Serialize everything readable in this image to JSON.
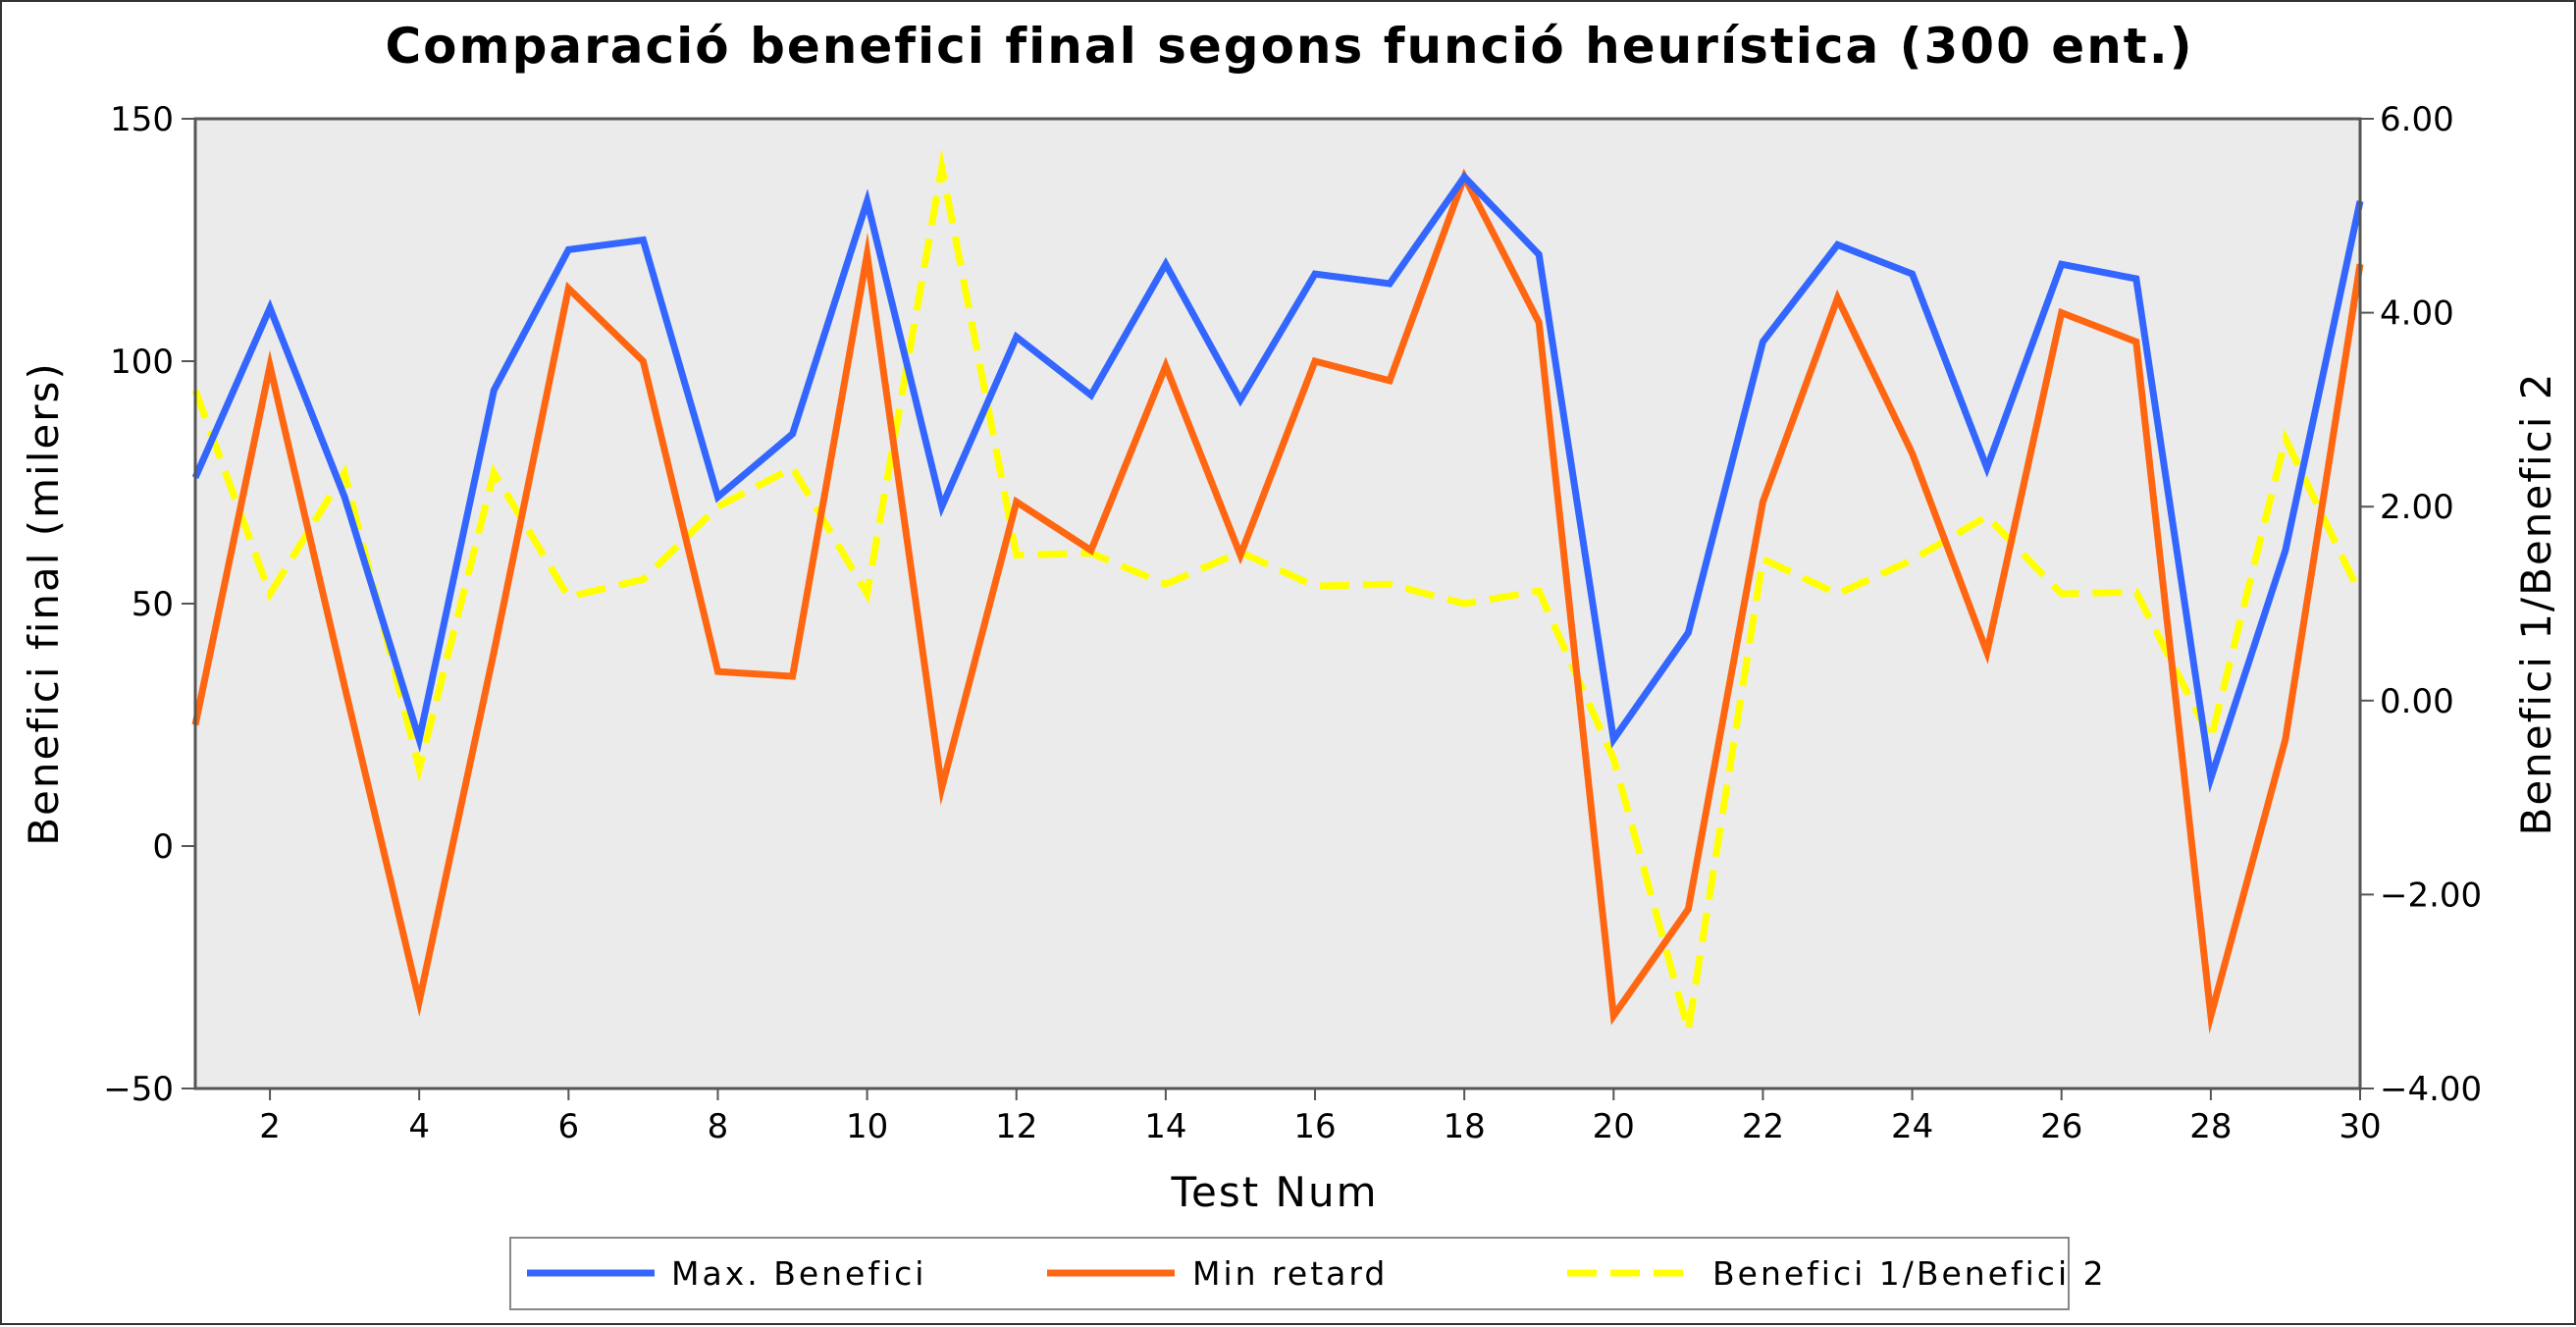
{
  "colors": {
    "series1": "#3366ff",
    "series2": "#ff6611",
    "series3": "#ffff00",
    "plot_bg": "#ebebeb",
    "axis": "#555555"
  },
  "chart_data": {
    "type": "line",
    "title": "Comparació benefici final segons funció heurística (300 ent.)",
    "xlabel": "Test Num",
    "ylabel": "Benefici final (milers)",
    "ylabel_right": "Benefici 1/Benefici 2",
    "xlim": [
      1,
      30
    ],
    "ylim": [
      -50,
      150
    ],
    "ylim_right": [
      -4,
      6
    ],
    "x_ticks": [
      2,
      4,
      6,
      8,
      10,
      12,
      14,
      16,
      18,
      20,
      22,
      24,
      26,
      28,
      30
    ],
    "y_ticks": [
      -50,
      0,
      50,
      100,
      150
    ],
    "y_tick_labels": [
      "−50",
      "0",
      "50",
      "100",
      "150"
    ],
    "y_right_ticks": [
      -4,
      -2,
      0,
      2,
      4,
      6
    ],
    "y_right_tick_labels": [
      "−4.00",
      "−2.00",
      "0.00",
      "2.00",
      "4.00",
      "6.00"
    ],
    "x": [
      1,
      2,
      3,
      4,
      5,
      6,
      7,
      8,
      9,
      10,
      11,
      12,
      13,
      14,
      15,
      16,
      17,
      18,
      19,
      20,
      21,
      22,
      23,
      24,
      25,
      26,
      27,
      28,
      29,
      30
    ],
    "series": [
      {
        "name": "Max. Benefici",
        "axis": "left",
        "style": "solid",
        "values": [
          76,
          111,
          72,
          22,
          94,
          123,
          125,
          72,
          85,
          133,
          70,
          105,
          93,
          120,
          92,
          118,
          116,
          138,
          122,
          22,
          44,
          104,
          124,
          118,
          78,
          120,
          117,
          14,
          61,
          133
        ]
      },
      {
        "name": "Min retard",
        "axis": "left",
        "style": "solid",
        "values": [
          25,
          99,
          33,
          -32,
          40,
          115,
          100,
          36,
          35,
          122,
          12,
          71,
          61,
          99,
          60,
          100,
          96,
          138,
          108,
          -35,
          -13,
          71,
          113,
          81,
          40,
          110,
          104,
          -35,
          22,
          120
        ]
      },
      {
        "name": "Benefici 1/Benefici 2",
        "axis": "right",
        "style": "dashed",
        "values": [
          3.2,
          1.1,
          2.35,
          -0.7,
          2.35,
          1.07,
          1.25,
          2.0,
          2.4,
          1.1,
          5.5,
          1.5,
          1.52,
          1.2,
          1.53,
          1.18,
          1.2,
          1.0,
          1.13,
          -0.6,
          -3.4,
          1.46,
          1.1,
          1.45,
          1.9,
          1.1,
          1.12,
          -0.4,
          2.7,
          1.1
        ]
      }
    ],
    "legend": "bottom"
  }
}
